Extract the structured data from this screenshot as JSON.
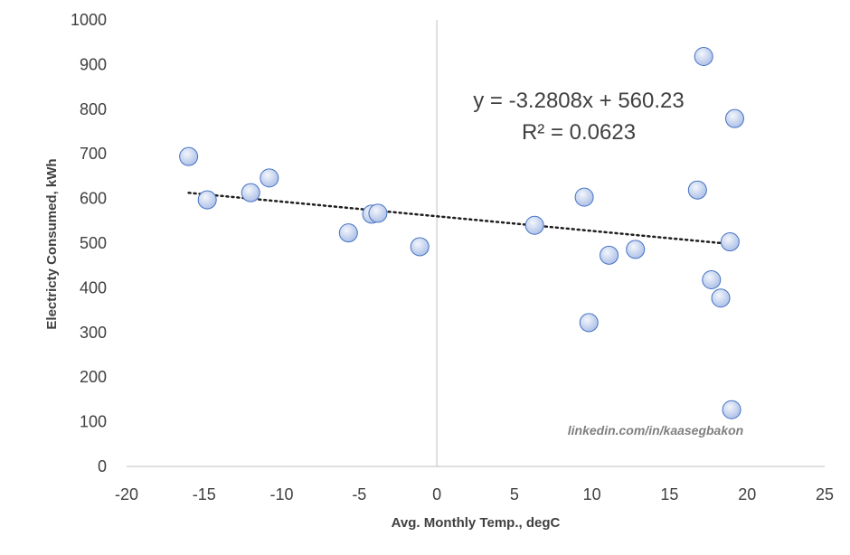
{
  "chart_data": {
    "type": "scatter",
    "xlabel": "Avg. Monthly Temp., degC",
    "ylabel": "Electricty Consumed, kWh",
    "xlim": [
      -20,
      25
    ],
    "ylim": [
      0,
      1000
    ],
    "x_ticks": [
      "-20",
      "-15",
      "-10",
      "-5",
      "0",
      "5",
      "10",
      "15",
      "20",
      "25"
    ],
    "y_ticks": [
      "0",
      "100",
      "200",
      "300",
      "400",
      "500",
      "600",
      "700",
      "800",
      "900",
      "1000"
    ],
    "grid": false,
    "points": [
      {
        "x": -16.0,
        "y": 694
      },
      {
        "x": -14.8,
        "y": 597
      },
      {
        "x": -12.0,
        "y": 613
      },
      {
        "x": -10.8,
        "y": 646
      },
      {
        "x": -5.7,
        "y": 523
      },
      {
        "x": -4.2,
        "y": 565
      },
      {
        "x": -3.8,
        "y": 567
      },
      {
        "x": -1.1,
        "y": 492
      },
      {
        "x": 6.3,
        "y": 540
      },
      {
        "x": 9.5,
        "y": 603
      },
      {
        "x": 9.8,
        "y": 322
      },
      {
        "x": 11.1,
        "y": 473
      },
      {
        "x": 12.8,
        "y": 486
      },
      {
        "x": 16.8,
        "y": 619
      },
      {
        "x": 17.2,
        "y": 918
      },
      {
        "x": 17.7,
        "y": 418
      },
      {
        "x": 18.3,
        "y": 377
      },
      {
        "x": 18.9,
        "y": 503
      },
      {
        "x": 19.0,
        "y": 127
      },
      {
        "x": 19.2,
        "y": 779
      }
    ],
    "trendline": {
      "type": "linear",
      "slope": -3.2808,
      "intercept": 560.23,
      "x_range": [
        -16.0,
        19.2
      ],
      "style": "dotted"
    },
    "trendline_equation": "y = -3.2808x + 560.23",
    "r_squared_label": "R² = 0.0623",
    "annotation": "linkedin.com/in/kaasegbakon",
    "colors": {
      "marker_fill_top": "#e6edf9",
      "marker_fill_bottom": "#a9bde6",
      "marker_stroke": "#4472c4",
      "axis": "#bfbfbf",
      "text": "#404040",
      "trendline": "#1f1f1f"
    }
  }
}
